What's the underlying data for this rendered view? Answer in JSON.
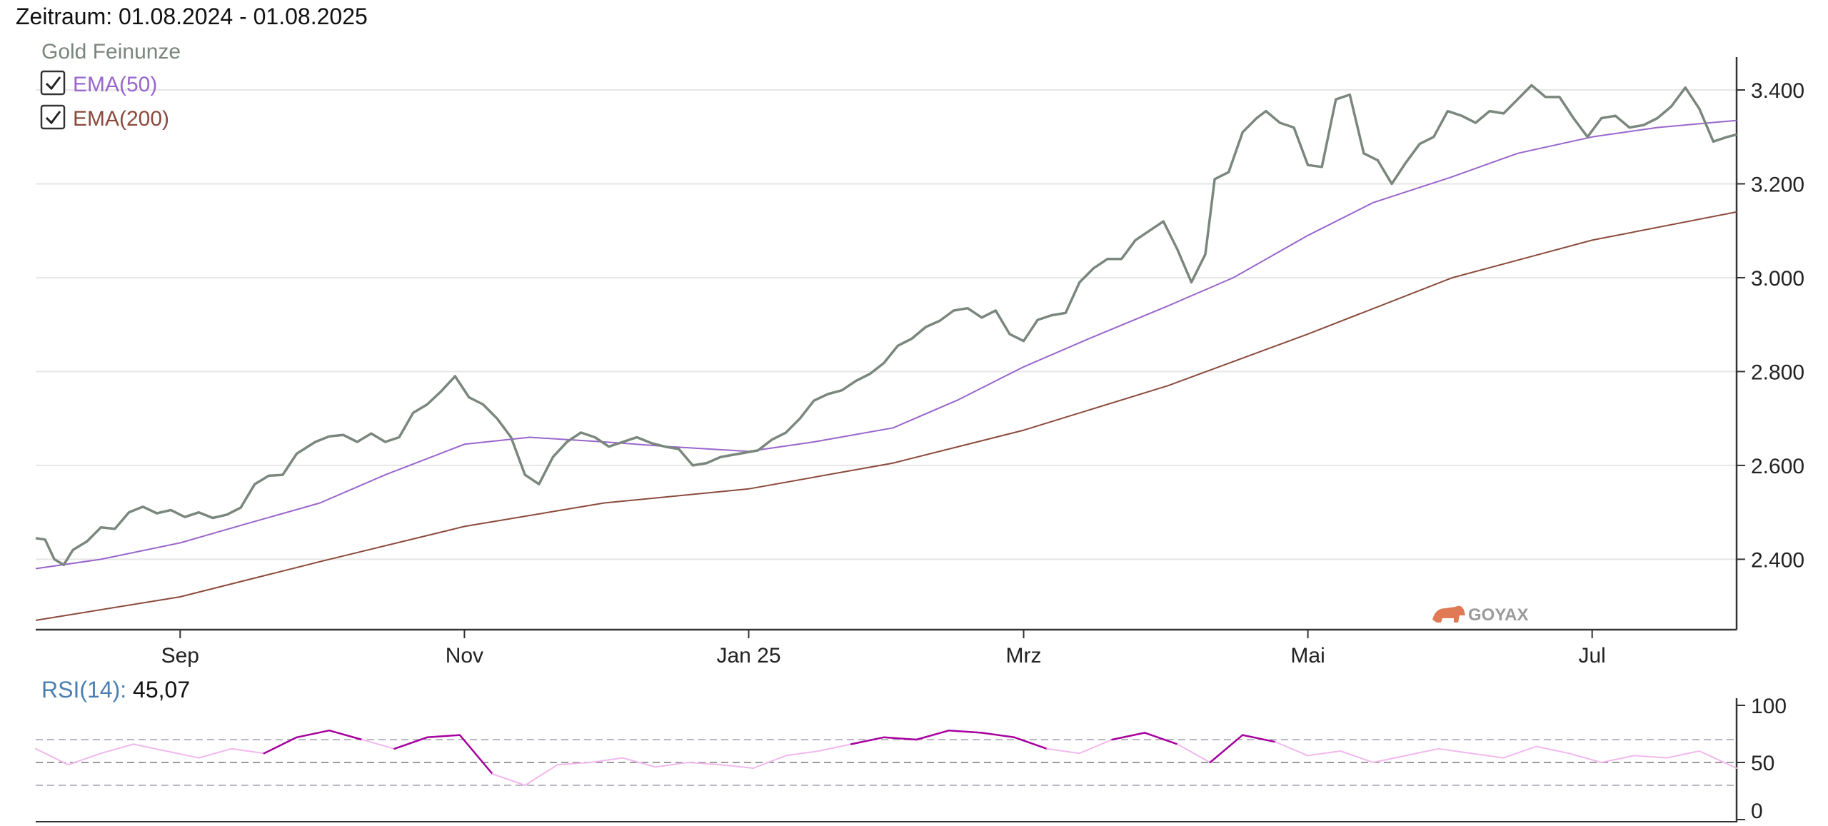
{
  "header": {
    "period_label": "Zeitraum: 01.08.2024 - 01.08.2025"
  },
  "legend": {
    "series_title": "Gold Feinunze",
    "items": [
      {
        "label": "EMA(50)",
        "checked": true,
        "color": "#9966cc"
      },
      {
        "label": "EMA(200)",
        "checked": true,
        "color": "#8b4a3c"
      }
    ]
  },
  "watermark": {
    "text": "GOYAX",
    "color": "#e07a55"
  },
  "colors": {
    "price": "#7a877c",
    "ema50": "#9966cc",
    "ema200": "#8b4a3c",
    "rsi_normal": "#f2b8ee",
    "rsi_extreme": "#a6009e",
    "grid": "#e6e6e6",
    "axis": "#333333",
    "rsi_label": "#4a7fb0"
  },
  "chart_data": [
    {
      "type": "line",
      "ylim": [
        2250,
        3470
      ],
      "y_ticks": [
        {
          "value": 2400,
          "label": "2.400"
        },
        {
          "value": 2600,
          "label": "2.600"
        },
        {
          "value": 2800,
          "label": "2.800"
        },
        {
          "value": 3000,
          "label": "3.000"
        },
        {
          "value": 3200,
          "label": "3.200"
        },
        {
          "value": 3400,
          "label": "3.400"
        }
      ],
      "x_ticks": [
        {
          "value": "2024-09-01",
          "label": "Sep"
        },
        {
          "value": "2024-11-01",
          "label": "Nov"
        },
        {
          "value": "2025-01-01",
          "label": "Jan 25"
        },
        {
          "value": "2025-03-01",
          "label": "Mrz"
        },
        {
          "value": "2025-05-01",
          "label": "Mai"
        },
        {
          "value": "2025-07-01",
          "label": "Jul"
        }
      ],
      "xlim": [
        "2024-08-01",
        "2025-08-01"
      ],
      "grid": true,
      "series": [
        {
          "name": "Gold Feinunze",
          "x": [
            "2024-08-01",
            "2024-08-03",
            "2024-08-05",
            "2024-08-07",
            "2024-08-09",
            "2024-08-12",
            "2024-08-15",
            "2024-08-18",
            "2024-08-21",
            "2024-08-24",
            "2024-08-27",
            "2024-08-30",
            "2024-09-02",
            "2024-09-05",
            "2024-09-08",
            "2024-09-11",
            "2024-09-14",
            "2024-09-17",
            "2024-09-20",
            "2024-09-23",
            "2024-09-26",
            "2024-09-30",
            "2024-10-03",
            "2024-10-06",
            "2024-10-09",
            "2024-10-12",
            "2024-10-15",
            "2024-10-18",
            "2024-10-21",
            "2024-10-24",
            "2024-10-27",
            "2024-10-30",
            "2024-11-02",
            "2024-11-05",
            "2024-11-08",
            "2024-11-11",
            "2024-11-14",
            "2024-11-17",
            "2024-11-20",
            "2024-11-23",
            "2024-11-26",
            "2024-11-29",
            "2024-12-02",
            "2024-12-05",
            "2024-12-08",
            "2024-12-11",
            "2024-12-14",
            "2024-12-17",
            "2024-12-20",
            "2024-12-23",
            "2024-12-26",
            "2024-12-30",
            "2025-01-03",
            "2025-01-06",
            "2025-01-09",
            "2025-01-12",
            "2025-01-15",
            "2025-01-18",
            "2025-01-21",
            "2025-01-24",
            "2025-01-27",
            "2025-01-30",
            "2025-02-02",
            "2025-02-05",
            "2025-02-08",
            "2025-02-11",
            "2025-02-14",
            "2025-02-17",
            "2025-02-20",
            "2025-02-23",
            "2025-02-26",
            "2025-03-01",
            "2025-03-04",
            "2025-03-07",
            "2025-03-10",
            "2025-03-13",
            "2025-03-16",
            "2025-03-19",
            "2025-03-22",
            "2025-03-25",
            "2025-03-28",
            "2025-03-31",
            "2025-04-03",
            "2025-04-06",
            "2025-04-09",
            "2025-04-11",
            "2025-04-14",
            "2025-04-17",
            "2025-04-20",
            "2025-04-22",
            "2025-04-25",
            "2025-04-28",
            "2025-05-01",
            "2025-05-04",
            "2025-05-07",
            "2025-05-10",
            "2025-05-13",
            "2025-05-16",
            "2025-05-19",
            "2025-05-22",
            "2025-05-25",
            "2025-05-28",
            "2025-05-31",
            "2025-06-03",
            "2025-06-06",
            "2025-06-09",
            "2025-06-12",
            "2025-06-15",
            "2025-06-18",
            "2025-06-21",
            "2025-06-24",
            "2025-06-27",
            "2025-06-30",
            "2025-07-03",
            "2025-07-06",
            "2025-07-09",
            "2025-07-12",
            "2025-07-15",
            "2025-07-18",
            "2025-07-21",
            "2025-07-24",
            "2025-07-27",
            "2025-07-30",
            "2025-08-01"
          ],
          "values": [
            2445,
            2442,
            2400,
            2388,
            2420,
            2438,
            2468,
            2465,
            2500,
            2512,
            2498,
            2505,
            2490,
            2500,
            2488,
            2495,
            2510,
            2560,
            2578,
            2580,
            2625,
            2650,
            2662,
            2665,
            2650,
            2668,
            2650,
            2660,
            2712,
            2730,
            2758,
            2790,
            2745,
            2730,
            2700,
            2660,
            2580,
            2560,
            2618,
            2650,
            2670,
            2660,
            2640,
            2650,
            2660,
            2648,
            2640,
            2635,
            2600,
            2605,
            2618,
            2625,
            2632,
            2655,
            2670,
            2700,
            2738,
            2752,
            2760,
            2780,
            2795,
            2818,
            2855,
            2870,
            2895,
            2908,
            2930,
            2935,
            2915,
            2930,
            2880,
            2865,
            2910,
            2920,
            2925,
            2990,
            3020,
            3040,
            3040,
            3080,
            3100,
            3120,
            3060,
            2990,
            3050,
            3210,
            3225,
            3310,
            3340,
            3355,
            3330,
            3320,
            3240,
            3236,
            3380,
            3390,
            3265,
            3250,
            3200,
            3245,
            3285,
            3300,
            3355,
            3345,
            3330,
            3355,
            3350,
            3380,
            3410,
            3385,
            3385,
            3340,
            3300,
            3340,
            3345,
            3320,
            3325,
            3340,
            3365,
            3405,
            3360,
            3290,
            3300,
            3305
          ],
          "color": "#7a877c"
        },
        {
          "name": "EMA(50)",
          "x": [
            "2024-08-01",
            "2024-08-15",
            "2024-09-01",
            "2024-09-15",
            "2024-10-01",
            "2024-10-15",
            "2024-11-01",
            "2024-11-15",
            "2024-12-01",
            "2024-12-15",
            "2025-01-01",
            "2025-01-15",
            "2025-02-01",
            "2025-02-15",
            "2025-03-01",
            "2025-03-15",
            "2025-04-01",
            "2025-04-15",
            "2025-05-01",
            "2025-05-15",
            "2025-06-01",
            "2025-06-15",
            "2025-07-01",
            "2025-07-15",
            "2025-08-01"
          ],
          "values": [
            2380,
            2400,
            2435,
            2475,
            2520,
            2580,
            2645,
            2660,
            2650,
            2640,
            2630,
            2650,
            2680,
            2740,
            2810,
            2870,
            2940,
            3000,
            3090,
            3160,
            3215,
            3265,
            3300,
            3320,
            3335
          ],
          "color": "#9966cc"
        },
        {
          "name": "EMA(200)",
          "x": [
            "2024-08-01",
            "2024-09-01",
            "2024-10-01",
            "2024-11-01",
            "2024-12-01",
            "2025-01-01",
            "2025-02-01",
            "2025-03-01",
            "2025-04-01",
            "2025-05-01",
            "2025-06-01",
            "2025-07-01",
            "2025-08-01"
          ],
          "values": [
            2270,
            2320,
            2395,
            2470,
            2520,
            2550,
            2605,
            2675,
            2770,
            2880,
            3000,
            3080,
            3140
          ],
          "color": "#8b4a3c"
        }
      ]
    },
    {
      "type": "line",
      "label": "RSI(14)",
      "current_value": "45,07",
      "ylim": [
        0,
        100
      ],
      "y_ticks": [
        {
          "value": 0,
          "label": "0"
        },
        {
          "value": 50,
          "label": "50"
        },
        {
          "value": 100,
          "label": "100"
        }
      ],
      "reference_lines": [
        30,
        50,
        70
      ],
      "xlim": [
        "2024-08-01",
        "2025-08-01"
      ],
      "series": [
        {
          "name": "RSI(14)",
          "x": [
            "2024-08-01",
            "2024-08-08",
            "2024-08-15",
            "2024-08-22",
            "2024-08-29",
            "2024-09-05",
            "2024-09-12",
            "2024-09-19",
            "2024-09-26",
            "2024-10-03",
            "2024-10-10",
            "2024-10-17",
            "2024-10-24",
            "2024-10-31",
            "2024-11-07",
            "2024-11-14",
            "2024-11-21",
            "2024-11-28",
            "2024-12-05",
            "2024-12-12",
            "2024-12-19",
            "2024-12-26",
            "2025-01-02",
            "2025-01-09",
            "2025-01-16",
            "2025-01-23",
            "2025-01-30",
            "2025-02-06",
            "2025-02-13",
            "2025-02-20",
            "2025-02-27",
            "2025-03-06",
            "2025-03-13",
            "2025-03-20",
            "2025-03-27",
            "2025-04-03",
            "2025-04-10",
            "2025-04-17",
            "2025-04-24",
            "2025-05-01",
            "2025-05-08",
            "2025-05-15",
            "2025-05-22",
            "2025-05-29",
            "2025-06-05",
            "2025-06-12",
            "2025-06-19",
            "2025-06-26",
            "2025-07-03",
            "2025-07-10",
            "2025-07-17",
            "2025-07-24",
            "2025-08-01"
          ],
          "values": [
            62,
            48,
            58,
            66,
            60,
            54,
            62,
            58,
            72,
            78,
            70,
            62,
            72,
            74,
            40,
            30,
            48,
            50,
            54,
            46,
            50,
            48,
            45,
            56,
            60,
            66,
            72,
            70,
            78,
            76,
            72,
            62,
            58,
            70,
            76,
            66,
            50,
            74,
            68,
            56,
            60,
            50,
            56,
            62,
            58,
            54,
            64,
            58,
            50,
            56,
            54,
            60,
            45
          ],
          "color": "#f2b8ee"
        }
      ]
    }
  ]
}
